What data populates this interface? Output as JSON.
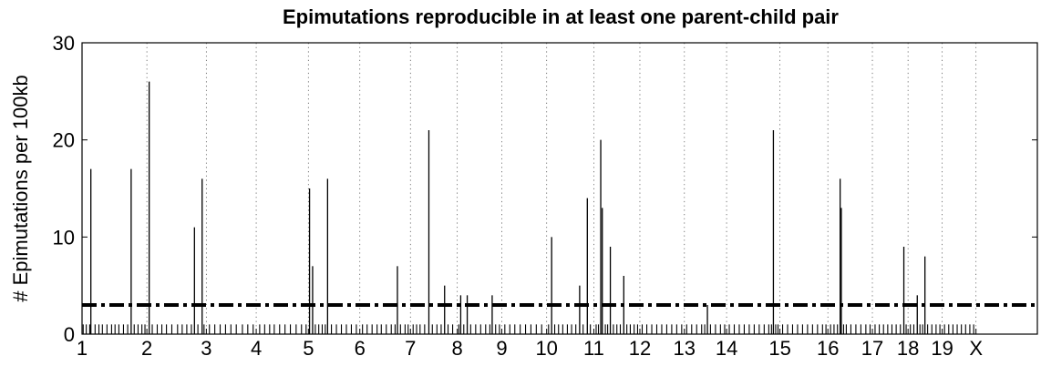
{
  "chart_data": {
    "type": "bar",
    "title": "Epimutations reproducible in at least one parent-child pair",
    "xlabel": "",
    "ylabel": "# Epimutations per 100kb",
    "ylim": [
      0,
      30
    ],
    "yticks": [
      0,
      10,
      20,
      30
    ],
    "grid": "vertical dotted at chromosome boundaries",
    "threshold": {
      "value": 3,
      "style": "dash-dot"
    },
    "chromosomes": [
      "1",
      "2",
      "3",
      "4",
      "5",
      "6",
      "7",
      "8",
      "9",
      "10",
      "11",
      "12",
      "13",
      "14",
      "15",
      "16",
      "17",
      "18",
      "19",
      "X"
    ],
    "chromosome_starts": [
      0,
      16.9,
      32.4,
      45.4,
      59.0,
      72.4,
      85.6,
      97.8,
      109.4,
      121.1,
      133.4,
      145.4,
      157.0,
      168.0,
      181.9,
      194.4,
      206.0,
      215.3,
      224.2,
      233.0
    ],
    "x_max": 249.0,
    "peaks": [
      {
        "x": 2.3,
        "value": 17
      },
      {
        "x": 12.8,
        "value": 17
      },
      {
        "x": 17.5,
        "value": 26
      },
      {
        "x": 29.3,
        "value": 11
      },
      {
        "x": 31.3,
        "value": 16
      },
      {
        "x": 59.3,
        "value": 15
      },
      {
        "x": 60.1,
        "value": 7
      },
      {
        "x": 64.0,
        "value": 16
      },
      {
        "x": 82.2,
        "value": 7
      },
      {
        "x": 90.4,
        "value": 21
      },
      {
        "x": 94.5,
        "value": 5
      },
      {
        "x": 98.7,
        "value": 4
      },
      {
        "x": 100.4,
        "value": 4
      },
      {
        "x": 106.9,
        "value": 4
      },
      {
        "x": 122.4,
        "value": 10
      },
      {
        "x": 129.7,
        "value": 5
      },
      {
        "x": 131.7,
        "value": 14
      },
      {
        "x": 135.2,
        "value": 20
      },
      {
        "x": 135.6,
        "value": 13
      },
      {
        "x": 137.7,
        "value": 9
      },
      {
        "x": 141.2,
        "value": 6
      },
      {
        "x": 163.0,
        "value": 3
      },
      {
        "x": 180.2,
        "value": 21
      },
      {
        "x": 197.6,
        "value": 16
      },
      {
        "x": 197.9,
        "value": 13
      },
      {
        "x": 214.2,
        "value": 9
      },
      {
        "x": 217.7,
        "value": 4
      },
      {
        "x": 219.7,
        "value": 8
      }
    ],
    "background": [
      {
        "x": 0.3,
        "value": 1
      },
      {
        "x": 1.1,
        "value": 1
      },
      {
        "x": 2.0,
        "value": 1
      },
      {
        "x": 3.4,
        "value": 1
      },
      {
        "x": 4.4,
        "value": 1
      },
      {
        "x": 5.3,
        "value": 1
      },
      {
        "x": 6.5,
        "value": 1
      },
      {
        "x": 7.7,
        "value": 1
      },
      {
        "x": 8.6,
        "value": 1
      },
      {
        "x": 9.6,
        "value": 1
      },
      {
        "x": 10.8,
        "value": 1
      },
      {
        "x": 11.9,
        "value": 1
      },
      {
        "x": 13.6,
        "value": 1
      },
      {
        "x": 14.6,
        "value": 1
      },
      {
        "x": 15.6,
        "value": 1
      },
      {
        "x": 16.4,
        "value": 1
      },
      {
        "x": 18.3,
        "value": 1
      },
      {
        "x": 19.6,
        "value": 1
      },
      {
        "x": 20.8,
        "value": 1
      },
      {
        "x": 22.0,
        "value": 1
      },
      {
        "x": 23.4,
        "value": 1
      },
      {
        "x": 24.9,
        "value": 1
      },
      {
        "x": 26.1,
        "value": 1
      },
      {
        "x": 27.3,
        "value": 1
      },
      {
        "x": 28.5,
        "value": 1
      },
      {
        "x": 30.2,
        "value": 1
      },
      {
        "x": 31.8,
        "value": 1
      },
      {
        "x": 33.2,
        "value": 1
      },
      {
        "x": 34.6,
        "value": 1
      },
      {
        "x": 36.0,
        "value": 1
      },
      {
        "x": 37.4,
        "value": 1
      },
      {
        "x": 38.8,
        "value": 1
      },
      {
        "x": 40.2,
        "value": 1
      },
      {
        "x": 41.8,
        "value": 1
      },
      {
        "x": 43.2,
        "value": 1
      },
      {
        "x": 44.6,
        "value": 1
      },
      {
        "x": 46.3,
        "value": 1
      },
      {
        "x": 47.6,
        "value": 1
      },
      {
        "x": 48.9,
        "value": 1
      },
      {
        "x": 50.1,
        "value": 1
      },
      {
        "x": 51.5,
        "value": 1
      },
      {
        "x": 52.9,
        "value": 1
      },
      {
        "x": 54.3,
        "value": 1
      },
      {
        "x": 55.8,
        "value": 1
      },
      {
        "x": 57.2,
        "value": 1
      },
      {
        "x": 58.4,
        "value": 1
      },
      {
        "x": 60.8,
        "value": 1
      },
      {
        "x": 61.7,
        "value": 1
      },
      {
        "x": 62.6,
        "value": 1
      },
      {
        "x": 63.4,
        "value": 1
      },
      {
        "x": 65.0,
        "value": 1
      },
      {
        "x": 66.3,
        "value": 1
      },
      {
        "x": 67.6,
        "value": 1
      },
      {
        "x": 68.9,
        "value": 1
      },
      {
        "x": 70.2,
        "value": 1
      },
      {
        "x": 71.5,
        "value": 1
      },
      {
        "x": 73.1,
        "value": 1
      },
      {
        "x": 74.3,
        "value": 1
      },
      {
        "x": 75.6,
        "value": 1
      },
      {
        "x": 76.9,
        "value": 1
      },
      {
        "x": 78.0,
        "value": 1
      },
      {
        "x": 79.3,
        "value": 1
      },
      {
        "x": 80.6,
        "value": 1
      },
      {
        "x": 81.6,
        "value": 1
      },
      {
        "x": 83.0,
        "value": 1
      },
      {
        "x": 84.2,
        "value": 1
      },
      {
        "x": 85.0,
        "value": 1
      },
      {
        "x": 86.3,
        "value": 1
      },
      {
        "x": 87.2,
        "value": 1
      },
      {
        "x": 88.1,
        "value": 1
      },
      {
        "x": 89.3,
        "value": 1
      },
      {
        "x": 91.3,
        "value": 1
      },
      {
        "x": 92.5,
        "value": 1
      },
      {
        "x": 93.6,
        "value": 1
      },
      {
        "x": 95.4,
        "value": 1
      },
      {
        "x": 96.6,
        "value": 1
      },
      {
        "x": 98.2,
        "value": 1
      },
      {
        "x": 99.5,
        "value": 1
      },
      {
        "x": 101.3,
        "value": 1
      },
      {
        "x": 102.6,
        "value": 1
      },
      {
        "x": 103.9,
        "value": 1
      },
      {
        "x": 105.2,
        "value": 1
      },
      {
        "x": 106.3,
        "value": 1
      },
      {
        "x": 107.8,
        "value": 1
      },
      {
        "x": 108.8,
        "value": 1
      },
      {
        "x": 110.2,
        "value": 1
      },
      {
        "x": 111.5,
        "value": 1
      },
      {
        "x": 112.8,
        "value": 1
      },
      {
        "x": 114.2,
        "value": 1
      },
      {
        "x": 115.6,
        "value": 1
      },
      {
        "x": 117.0,
        "value": 1
      },
      {
        "x": 118.4,
        "value": 1
      },
      {
        "x": 119.8,
        "value": 1
      },
      {
        "x": 121.6,
        "value": 1
      },
      {
        "x": 123.2,
        "value": 1
      },
      {
        "x": 124.2,
        "value": 1
      },
      {
        "x": 125.3,
        "value": 1
      },
      {
        "x": 126.5,
        "value": 1
      },
      {
        "x": 127.6,
        "value": 1
      },
      {
        "x": 128.7,
        "value": 1
      },
      {
        "x": 130.6,
        "value": 1
      },
      {
        "x": 132.5,
        "value": 1
      },
      {
        "x": 134.0,
        "value": 1
      },
      {
        "x": 134.6,
        "value": 1
      },
      {
        "x": 136.4,
        "value": 1
      },
      {
        "x": 137.0,
        "value": 1
      },
      {
        "x": 138.5,
        "value": 1
      },
      {
        "x": 139.4,
        "value": 1
      },
      {
        "x": 140.3,
        "value": 1
      },
      {
        "x": 142.0,
        "value": 1
      },
      {
        "x": 142.9,
        "value": 1
      },
      {
        "x": 143.9,
        "value": 1
      },
      {
        "x": 144.8,
        "value": 1
      },
      {
        "x": 146.0,
        "value": 1
      },
      {
        "x": 147.2,
        "value": 1
      },
      {
        "x": 148.5,
        "value": 1
      },
      {
        "x": 149.8,
        "value": 1
      },
      {
        "x": 151.1,
        "value": 1
      },
      {
        "x": 152.4,
        "value": 1
      },
      {
        "x": 153.7,
        "value": 1
      },
      {
        "x": 155.0,
        "value": 1
      },
      {
        "x": 156.3,
        "value": 1
      },
      {
        "x": 157.6,
        "value": 1
      },
      {
        "x": 158.9,
        "value": 1
      },
      {
        "x": 160.2,
        "value": 1
      },
      {
        "x": 161.5,
        "value": 1
      },
      {
        "x": 162.3,
        "value": 1
      },
      {
        "x": 163.8,
        "value": 1
      },
      {
        "x": 165.1,
        "value": 1
      },
      {
        "x": 166.4,
        "value": 1
      },
      {
        "x": 167.5,
        "value": 1
      },
      {
        "x": 168.7,
        "value": 1
      },
      {
        "x": 170.0,
        "value": 1
      },
      {
        "x": 171.3,
        "value": 1
      },
      {
        "x": 172.6,
        "value": 1
      },
      {
        "x": 173.9,
        "value": 1
      },
      {
        "x": 175.2,
        "value": 1
      },
      {
        "x": 176.5,
        "value": 1
      },
      {
        "x": 177.8,
        "value": 1
      },
      {
        "x": 179.0,
        "value": 1
      },
      {
        "x": 179.7,
        "value": 1
      },
      {
        "x": 180.8,
        "value": 1
      },
      {
        "x": 181.4,
        "value": 1
      },
      {
        "x": 182.6,
        "value": 1
      },
      {
        "x": 183.9,
        "value": 1
      },
      {
        "x": 185.2,
        "value": 1
      },
      {
        "x": 186.5,
        "value": 1
      },
      {
        "x": 187.8,
        "value": 1
      },
      {
        "x": 189.1,
        "value": 1
      },
      {
        "x": 190.4,
        "value": 1
      },
      {
        "x": 191.7,
        "value": 1
      },
      {
        "x": 193.0,
        "value": 1
      },
      {
        "x": 193.9,
        "value": 1
      },
      {
        "x": 195.1,
        "value": 1
      },
      {
        "x": 196.0,
        "value": 1
      },
      {
        "x": 196.9,
        "value": 1
      },
      {
        "x": 198.5,
        "value": 1
      },
      {
        "x": 199.2,
        "value": 1
      },
      {
        "x": 200.4,
        "value": 1
      },
      {
        "x": 201.7,
        "value": 1
      },
      {
        "x": 203.0,
        "value": 1
      },
      {
        "x": 204.3,
        "value": 1
      },
      {
        "x": 205.4,
        "value": 1
      },
      {
        "x": 206.7,
        "value": 1
      },
      {
        "x": 207.8,
        "value": 1
      },
      {
        "x": 208.9,
        "value": 1
      },
      {
        "x": 210.0,
        "value": 1
      },
      {
        "x": 211.1,
        "value": 1
      },
      {
        "x": 212.2,
        "value": 1
      },
      {
        "x": 213.3,
        "value": 1
      },
      {
        "x": 214.8,
        "value": 1
      },
      {
        "x": 215.9,
        "value": 1
      },
      {
        "x": 216.8,
        "value": 1
      },
      {
        "x": 218.4,
        "value": 1
      },
      {
        "x": 219.1,
        "value": 1
      },
      {
        "x": 220.4,
        "value": 1
      },
      {
        "x": 221.5,
        "value": 1
      },
      {
        "x": 222.6,
        "value": 1
      },
      {
        "x": 223.6,
        "value": 1
      },
      {
        "x": 224.8,
        "value": 1
      },
      {
        "x": 225.9,
        "value": 1
      },
      {
        "x": 227.0,
        "value": 1
      },
      {
        "x": 228.1,
        "value": 1
      },
      {
        "x": 229.2,
        "value": 1
      },
      {
        "x": 230.3,
        "value": 1
      },
      {
        "x": 231.4,
        "value": 1
      },
      {
        "x": 232.4,
        "value": 1
      }
    ]
  }
}
